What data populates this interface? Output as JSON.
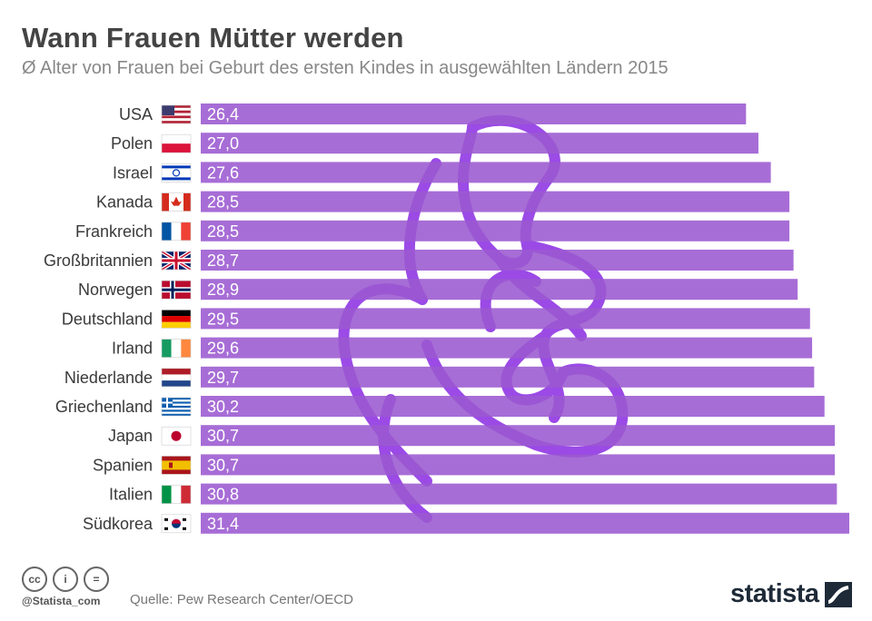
{
  "header": {
    "title": "Wann Frauen Mütter werden",
    "subtitle": "Ø Alter von Frauen bei Geburt des ersten Kindes in ausgewählten Ländern 2015"
  },
  "chart_data": {
    "type": "bar",
    "orientation": "horizontal",
    "title": "Wann Frauen Mütter werden",
    "subtitle": "Ø Alter von Frauen bei Geburt des ersten Kindes in ausgewählten Ländern 2015",
    "categories": [
      "USA",
      "Polen",
      "Israel",
      "Kanada",
      "Frankreich",
      "Großbritannien",
      "Norwegen",
      "Deutschland",
      "Irland",
      "Niederlande",
      "Griechenland",
      "Japan",
      "Spanien",
      "Italien",
      "Südkorea"
    ],
    "values": [
      26.4,
      27.0,
      27.6,
      28.5,
      28.5,
      28.7,
      28.9,
      29.5,
      29.6,
      29.7,
      30.2,
      30.7,
      30.7,
      30.8,
      31.4
    ],
    "value_labels": [
      "26,4",
      "27,0",
      "27,6",
      "28,5",
      "28,5",
      "28,7",
      "28,9",
      "29,5",
      "29,6",
      "29,7",
      "30,2",
      "30,7",
      "30,7",
      "30,8",
      "31,4"
    ],
    "flags": [
      "us",
      "pl",
      "il",
      "ca",
      "fr",
      "gb",
      "no",
      "de",
      "ie",
      "nl",
      "gr",
      "jp",
      "es",
      "it",
      "kr"
    ],
    "xlim": [
      0,
      31.4
    ],
    "bar_color": "#9b59d0",
    "xlabel": "",
    "ylabel": ""
  },
  "footer": {
    "license_icons": [
      "cc-icon",
      "by-icon",
      "nd-icon"
    ],
    "license_labels": [
      "cc",
      "i",
      "="
    ],
    "handle": "@Statista_com",
    "source": "Quelle: Pew Research Center/OECD",
    "brand": "statista"
  },
  "colors": {
    "bar": "#9b59d0",
    "watermark": "#8a2be2",
    "title": "#444444",
    "subtitle": "#888888",
    "brand": "#1e2a38"
  }
}
